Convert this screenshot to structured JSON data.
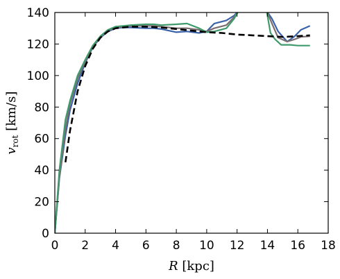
{
  "chart_data": {
    "type": "line",
    "xlabel": "R [kpc]",
    "ylabel": "v_rot [km/s]",
    "xlabel_parts": {
      "symbol": "R",
      "unit": " [kpc]"
    },
    "ylabel_parts": {
      "symbol": "v",
      "subscript": "rot",
      "unit": " [km/s]"
    },
    "xlim": [
      0,
      18
    ],
    "ylim": [
      0,
      140
    ],
    "xticks": [
      0,
      2,
      4,
      6,
      8,
      10,
      12,
      14,
      16,
      18
    ],
    "yticks": [
      0,
      20,
      40,
      60,
      80,
      100,
      120,
      140
    ],
    "grid": false,
    "legend": "none",
    "series": [
      {
        "style": "dashed",
        "color": "#000000",
        "x": [
          0.7,
          1.0,
          1.5,
          2.0,
          2.5,
          3.0,
          3.5,
          4.0,
          5.0,
          6.0,
          7.0,
          8.0,
          9.0,
          10.0,
          11.0,
          12.0,
          13.0,
          14.0,
          15.0,
          16.0,
          16.8
        ],
        "y": [
          45,
          65,
          90,
          106,
          117,
          124,
          128,
          130,
          131,
          131,
          130.5,
          129.5,
          128.5,
          127.5,
          127,
          126,
          125.5,
          125,
          124.5,
          125,
          125.5
        ]
      },
      {
        "style": "solid",
        "color": "#3a62a8",
        "x": [
          0,
          0.3,
          0.7,
          1.0,
          1.5,
          2.0,
          2.5,
          3.0,
          3.5,
          4.0,
          4.5,
          5.0,
          6.0,
          6.5,
          7.0,
          8.0,
          8.7,
          9.5,
          10.0,
          10.5,
          11.3,
          11.8,
          12.1,
          13.95,
          14.3,
          14.7,
          15.3,
          15.8,
          16.2,
          16.8
        ],
        "y": [
          0,
          35,
          62,
          78,
          95,
          108,
          118,
          124,
          128,
          130,
          130.5,
          130.5,
          130,
          130,
          129.5,
          127.5,
          128,
          127,
          128,
          133,
          135,
          138,
          141,
          141,
          136,
          128,
          121.5,
          125,
          129,
          131.5
        ]
      },
      {
        "style": "solid",
        "color": "#7a6e70",
        "x": [
          0,
          0.3,
          0.7,
          1.0,
          1.5,
          2.0,
          2.5,
          3.0,
          3.5,
          4.0,
          4.5,
          5.0,
          6.0,
          6.5,
          7.0,
          8.0,
          8.7,
          9.5,
          10.0,
          10.5,
          11.3,
          11.8,
          12.1,
          13.95,
          14.3,
          14.7,
          15.3,
          15.8,
          16.2,
          16.8
        ],
        "y": [
          0,
          36,
          66,
          82,
          98,
          109,
          118.5,
          124.5,
          128.5,
          130.5,
          131,
          131.5,
          131.5,
          131.5,
          131,
          130,
          130,
          129,
          128,
          130,
          132,
          137,
          141,
          141,
          133,
          124,
          121.5,
          123,
          124.5,
          125
        ]
      },
      {
        "style": "solid",
        "color": "#3f9a6c",
        "x": [
          0,
          0.3,
          0.7,
          1.0,
          1.5,
          2.0,
          2.5,
          3.0,
          3.5,
          4.0,
          4.5,
          5.0,
          6.0,
          6.5,
          7.0,
          8.0,
          8.7,
          9.5,
          10.0,
          10.5,
          11.3,
          11.8,
          12.1,
          13.95,
          14.2,
          14.5,
          14.9,
          15.5,
          16.0,
          16.8
        ],
        "y": [
          0,
          40,
          72,
          84,
          100,
          110,
          119,
          125,
          129,
          131,
          131.5,
          132,
          132.5,
          132.5,
          132,
          132.5,
          133,
          130,
          127.5,
          128,
          130,
          136,
          141,
          141,
          127,
          123,
          119.5,
          119.5,
          119,
          119
        ]
      }
    ]
  }
}
